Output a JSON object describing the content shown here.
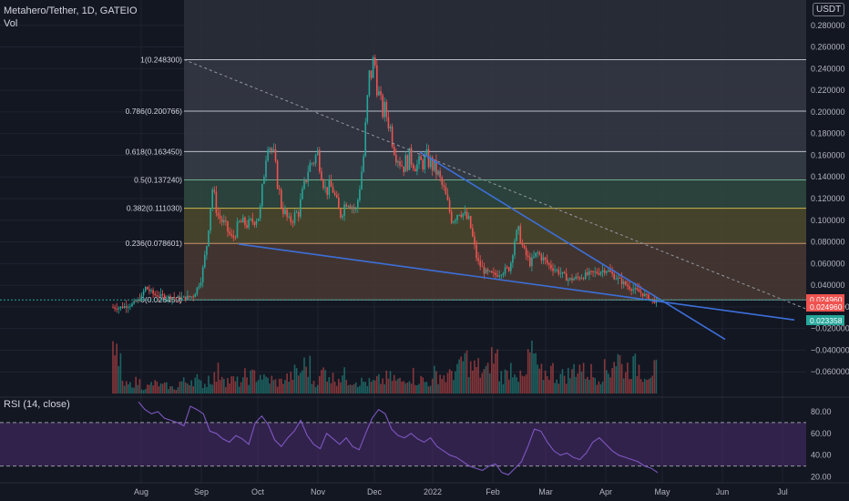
{
  "header": {
    "symbol_line": "Metahero/Tether, 1D, GATEIO",
    "vol_label": "Vol",
    "currency_badge": "USDT",
    "rsi_label": "RSI (14, close)"
  },
  "colors": {
    "background": "#131722",
    "up": "#26a69a",
    "down": "#ef5350",
    "trendline": "#3d6fd9",
    "rsi_line": "#7e57c2",
    "rsi_band": "#4a2c6e",
    "fib_zone_dark": "#363a45",
    "fib_zone_green": "#2f4a3f",
    "fib_zone_olive": "#4f4a2e",
    "fib_zone_brown": "#4a3a32",
    "text": "#b2b5be"
  },
  "chart_data": {
    "type": "candlestick",
    "title": "Metahero/Tether, 1D, GATEIO",
    "x_tick_labels": [
      "Aug",
      "Sep",
      "Oct",
      "Nov",
      "Dec",
      "2022",
      "Feb",
      "Mar",
      "Apr",
      "May",
      "Jun",
      "Jul"
    ],
    "y_tick_labels": [
      "0.280000",
      "0.260000",
      "0.240000",
      "0.220000",
      "0.200000",
      "0.180000",
      "0.160000",
      "0.140000",
      "0.120000",
      "0.100000",
      "0.080000",
      "0.060000",
      "0.040000",
      "−0.000000",
      "−0.020000",
      "−0.040000",
      "−0.060000"
    ],
    "ylim": [
      -0.06,
      0.3
    ],
    "fib_levels": [
      {
        "ratio": "1",
        "label": "1(0.248300)",
        "price": 0.2483
      },
      {
        "ratio": "0.786",
        "label": "0.786(0.200766)",
        "price": 0.200766
      },
      {
        "ratio": "0.618",
        "label": "0.618(0.163450)",
        "price": 0.16345
      },
      {
        "ratio": "0.5",
        "label": "0.5(0.137240)",
        "price": 0.13724
      },
      {
        "ratio": "0.382",
        "label": "0.382(0.111030)",
        "price": 0.11103
      },
      {
        "ratio": "0.236",
        "label": "0.236(0.078601)",
        "price": 0.078601
      },
      {
        "ratio": "0",
        "label": "0(0.026459)",
        "price": 0.026459
      }
    ],
    "price_badges": [
      {
        "label": "0.024960",
        "color": "#ef5350"
      },
      {
        "label": "0.024960",
        "color": "#ef5350"
      },
      {
        "label": "0.023358",
        "color": "#26a69a"
      }
    ],
    "price_path": [
      [
        "Jul 14",
        0.02
      ],
      [
        "Jul 20",
        0.019
      ],
      [
        "Jul 27",
        0.022
      ],
      [
        "Aug 1",
        0.028
      ],
      [
        "Aug 3",
        0.038
      ],
      [
        "Aug 8",
        0.031
      ],
      [
        "Aug 15",
        0.029
      ],
      [
        "Aug 22",
        0.028
      ],
      [
        "Aug 28",
        0.03
      ],
      [
        "Sep 1",
        0.046
      ],
      [
        "Sep 4",
        0.078
      ],
      [
        "Sep 7",
        0.13
      ],
      [
        "Sep 10",
        0.105
      ],
      [
        "Sep 14",
        0.095
      ],
      [
        "Sep 18",
        0.082
      ],
      [
        "Sep 22",
        0.098
      ],
      [
        "Sep 27",
        0.096
      ],
      [
        "Oct 2",
        0.105
      ],
      [
        "Oct 6",
        0.176
      ],
      [
        "Oct 9",
        0.16
      ],
      [
        "Oct 13",
        0.115
      ],
      [
        "Oct 17",
        0.098
      ],
      [
        "Oct 22",
        0.108
      ],
      [
        "Oct 27",
        0.148
      ],
      [
        "Nov 1",
        0.162
      ],
      [
        "Nov 5",
        0.128
      ],
      [
        "Nov 9",
        0.13
      ],
      [
        "Nov 13",
        0.104
      ],
      [
        "Nov 17",
        0.12
      ],
      [
        "Nov 22",
        0.108
      ],
      [
        "Nov 26",
        0.158
      ],
      [
        "Nov 29",
        0.23
      ],
      [
        "Dec 1",
        0.248
      ],
      [
        "Dec 4",
        0.205
      ],
      [
        "Dec 8",
        0.196
      ],
      [
        "Dec 12",
        0.165
      ],
      [
        "Dec 16",
        0.15
      ],
      [
        "Dec 20",
        0.158
      ],
      [
        "Dec 24",
        0.15
      ],
      [
        "Dec 29",
        0.157
      ],
      [
        "Jan 3",
        0.145
      ],
      [
        "Jan 7",
        0.126
      ],
      [
        "Jan 11",
        0.1
      ],
      [
        "Jan 15",
        0.11
      ],
      [
        "Jan 20",
        0.098
      ],
      [
        "Jan 24",
        0.062
      ],
      [
        "Jan 28",
        0.052
      ],
      [
        "Feb 2",
        0.049
      ],
      [
        "Feb 7",
        0.053
      ],
      [
        "Feb 11",
        0.056
      ],
      [
        "Feb 14",
        0.084
      ],
      [
        "Feb 16",
        0.09
      ],
      [
        "Feb 19",
        0.072
      ],
      [
        "Feb 23",
        0.06
      ],
      [
        "Feb 27",
        0.07
      ],
      [
        "Mar 3",
        0.058
      ],
      [
        "Mar 8",
        0.052
      ],
      [
        "Mar 13",
        0.045
      ],
      [
        "Mar 18",
        0.047
      ],
      [
        "Mar 23",
        0.05
      ],
      [
        "Mar 28",
        0.052
      ],
      [
        "Apr 1",
        0.055
      ],
      [
        "Apr 5",
        0.049
      ],
      [
        "Apr 9",
        0.044
      ],
      [
        "Apr 14",
        0.038
      ],
      [
        "Apr 19",
        0.034
      ],
      [
        "Apr 24",
        0.029
      ],
      [
        "Apr 28",
        0.025
      ]
    ],
    "volume_bars_relative": [
      0.96,
      0.22,
      0.3,
      0.18,
      0.25,
      0.2,
      0.15,
      0.3,
      0.38,
      0.26,
      0.42,
      0.55,
      0.34,
      0.3,
      0.44,
      0.48,
      0.36,
      0.3,
      0.4,
      0.52,
      0.7,
      0.34,
      0.56,
      0.4,
      0.46,
      0.36,
      0.3,
      0.28,
      0.34,
      0.4,
      0.32,
      0.48,
      0.36,
      0.3,
      0.5,
      0.44,
      0.6,
      0.86,
      0.66,
      0.56,
      0.92,
      0.48,
      0.7,
      0.4,
      1.0,
      0.52,
      0.6,
      0.46,
      0.5,
      0.7,
      0.56,
      0.46,
      0.6,
      0.9,
      0.66,
      0.7,
      0.56,
      0.6
    ],
    "rsi": {
      "levels": [
        70,
        30
      ],
      "y_tick_labels": [
        "80.00",
        "60.00",
        "40.00",
        "20.00"
      ],
      "ylim": [
        18,
        90
      ],
      "values": [
        89,
        82,
        78,
        80,
        74,
        72,
        70,
        67,
        85,
        82,
        78,
        62,
        60,
        55,
        52,
        58,
        55,
        50,
        70,
        76,
        68,
        54,
        48,
        56,
        62,
        72,
        58,
        50,
        46,
        60,
        55,
        50,
        56,
        48,
        45,
        60,
        74,
        82,
        78,
        64,
        58,
        56,
        60,
        55,
        52,
        56,
        48,
        44,
        40,
        38,
        34,
        30,
        28,
        26,
        30,
        32,
        24,
        22,
        28,
        34,
        48,
        64,
        62,
        52,
        44,
        40,
        42,
        38,
        36,
        42,
        52,
        56,
        50,
        44,
        40,
        38,
        36,
        34,
        30,
        28,
        24
      ]
    }
  }
}
